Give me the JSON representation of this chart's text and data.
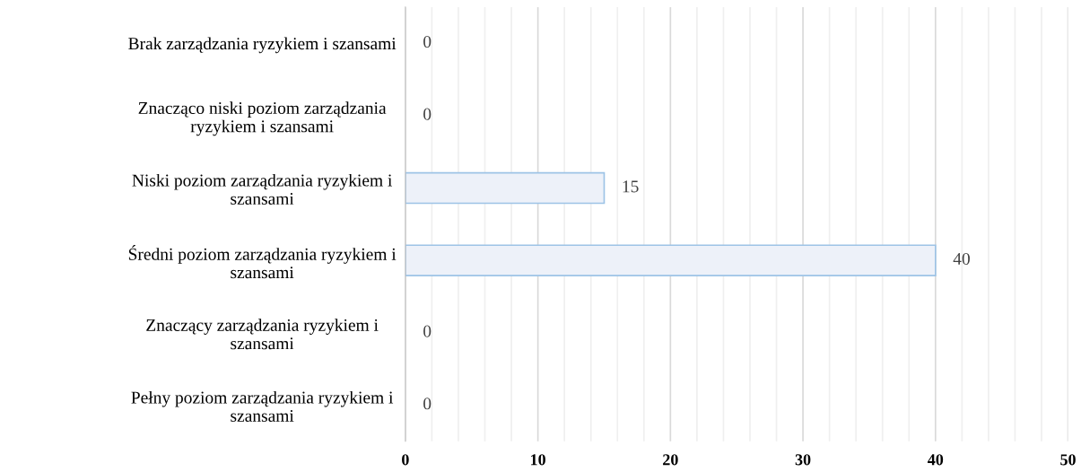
{
  "chart_data": {
    "type": "bar",
    "orientation": "horizontal",
    "categories": [
      "Brak zarządzania ryzykiem i szansami",
      "Znacząco niski poziom zarządzania\nryzykiem i szansami",
      "Niski poziom zarządzania ryzykiem i\nszansami",
      "Średni poziom zarządzania ryzykiem i\nszansami",
      "Znaczący zarządzania ryzykiem i\nszansami",
      "Pełny poziom zarządzania ryzykiem i\nszansami"
    ],
    "values": [
      0,
      0,
      15,
      40,
      0,
      0
    ],
    "color": "#edf1f9",
    "data_labels": true,
    "xlim": [
      0,
      50
    ],
    "xticks": [
      0,
      {
        "value": 2,
        "label": null
      },
      {
        "value": 4,
        "label": null
      },
      {
        "value": 6,
        "label": null
      },
      {
        "value": 8,
        "label": null
      },
      10,
      {
        "value": 12,
        "label": null
      },
      {
        "value": 14,
        "label": null
      },
      {
        "value": 16,
        "label": null
      },
      {
        "value": 18,
        "label": null
      },
      20,
      {
        "value": 22,
        "label": null
      },
      {
        "value": 24,
        "label": null
      },
      {
        "value": 26,
        "label": null
      },
      {
        "value": 28,
        "label": null
      },
      30,
      {
        "value": 32,
        "label": null
      },
      {
        "value": 34,
        "label": null
      },
      {
        "value": 36,
        "label": null
      },
      {
        "value": 38,
        "label": null
      },
      40,
      {
        "value": 42,
        "label": null
      },
      {
        "value": 44,
        "label": null
      },
      {
        "value": 46,
        "label": null
      },
      {
        "value": 48,
        "label": null
      },
      50
    ],
    "grid": "x"
  }
}
